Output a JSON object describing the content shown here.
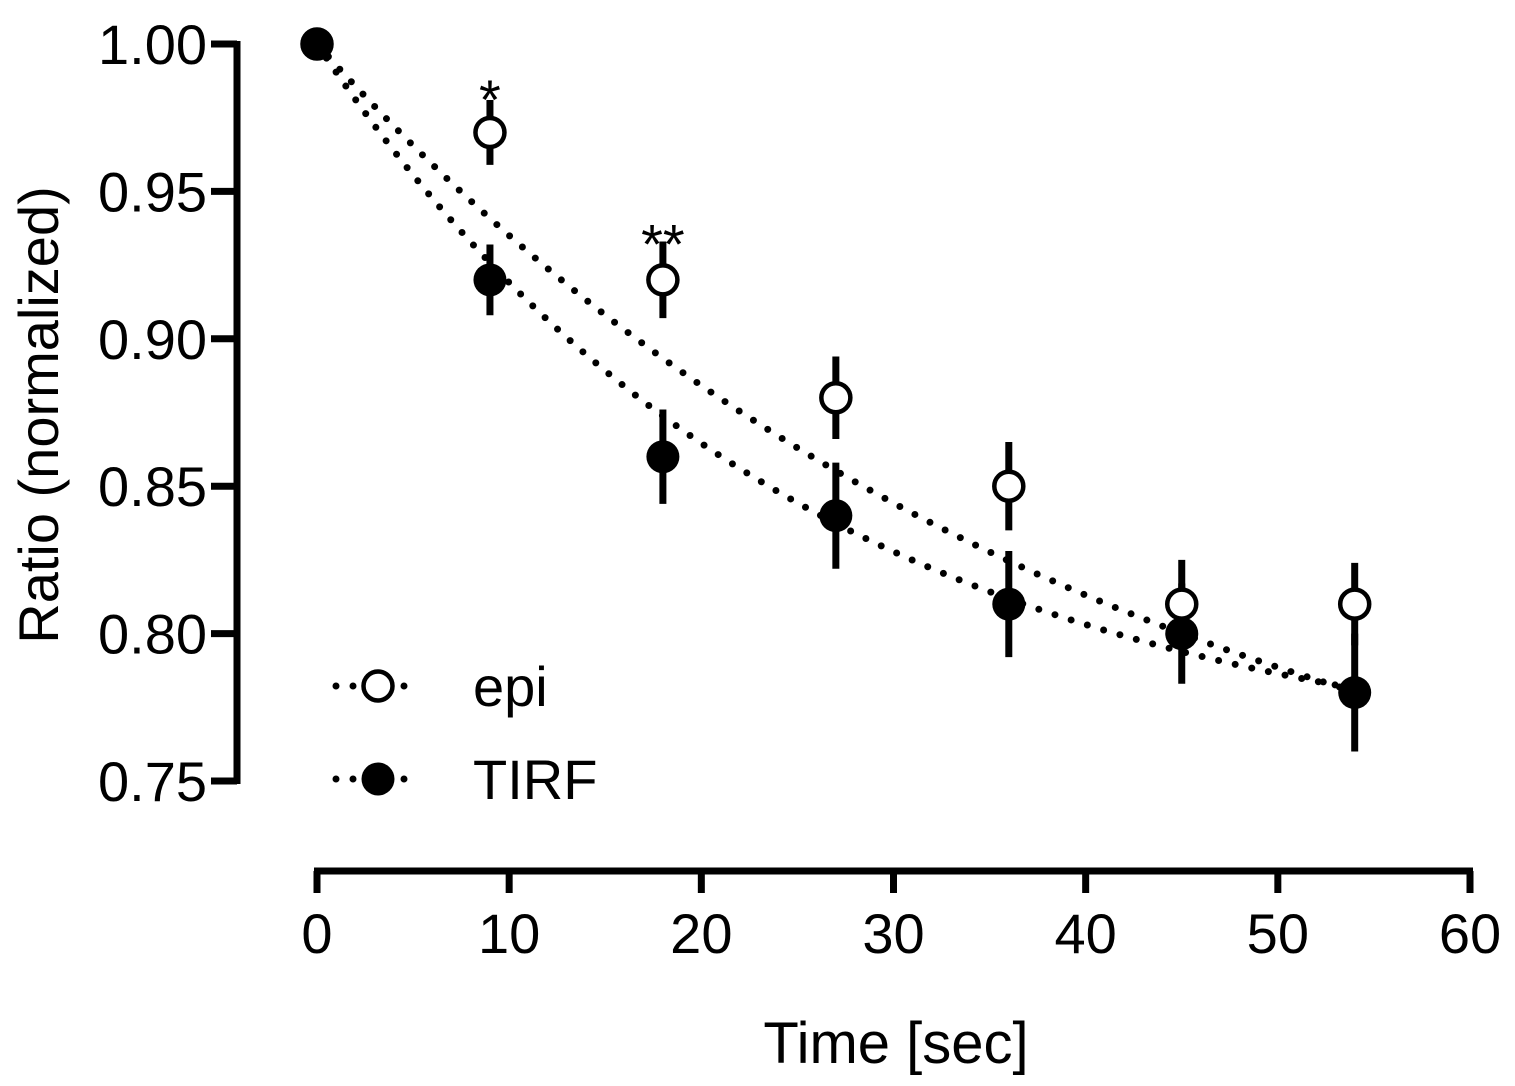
{
  "chart_data": {
    "type": "scatter",
    "title": "",
    "xlabel": "Time [sec]",
    "ylabel": "Ratio (normalized)",
    "xlim": [
      0,
      60
    ],
    "ylim": [
      0.75,
      1.0
    ],
    "xticks": [
      0,
      10,
      20,
      30,
      40,
      50,
      60
    ],
    "xtick_labels": [
      "0",
      "10",
      "20",
      "30",
      "40",
      "50",
      "60"
    ],
    "yticks": [
      0.75,
      0.8,
      0.85,
      0.9,
      0.95,
      1.0
    ],
    "ytick_labels": [
      "0.75",
      "0.80",
      "0.85",
      "0.90",
      "0.95",
      "1.00"
    ],
    "grid": false,
    "legend_position": "bottom-left",
    "series": [
      {
        "name": "epi",
        "marker": "open-circle",
        "fit": "dotted exponential decay",
        "x": [
          0,
          9,
          18,
          27,
          36,
          45,
          54
        ],
        "y": [
          1.0,
          0.97,
          0.92,
          0.88,
          0.85,
          0.81,
          0.81
        ],
        "err": [
          0,
          0.011,
          0.013,
          0.014,
          0.015,
          0.015,
          0.014
        ],
        "fit_curve": {
          "plateau": 0.7,
          "k": 0.0244
        }
      },
      {
        "name": "TIRF",
        "marker": "filled-circle",
        "fit": "dotted exponential decay",
        "x": [
          0,
          9,
          18,
          27,
          36,
          45,
          54
        ],
        "y": [
          1.0,
          0.92,
          0.86,
          0.84,
          0.81,
          0.8,
          0.78
        ],
        "err": [
          0,
          0.012,
          0.016,
          0.018,
          0.018,
          0.017,
          0.02
        ],
        "fit_curve": {
          "plateau": 0.752,
          "k": 0.0395
        }
      }
    ],
    "annotations": [
      {
        "text": "*",
        "x": 9,
        "y": 0.984
      },
      {
        "text": "**",
        "x": 18,
        "y": 0.935
      }
    ],
    "colors": {
      "ink": "#000000",
      "background": "#ffffff"
    }
  }
}
